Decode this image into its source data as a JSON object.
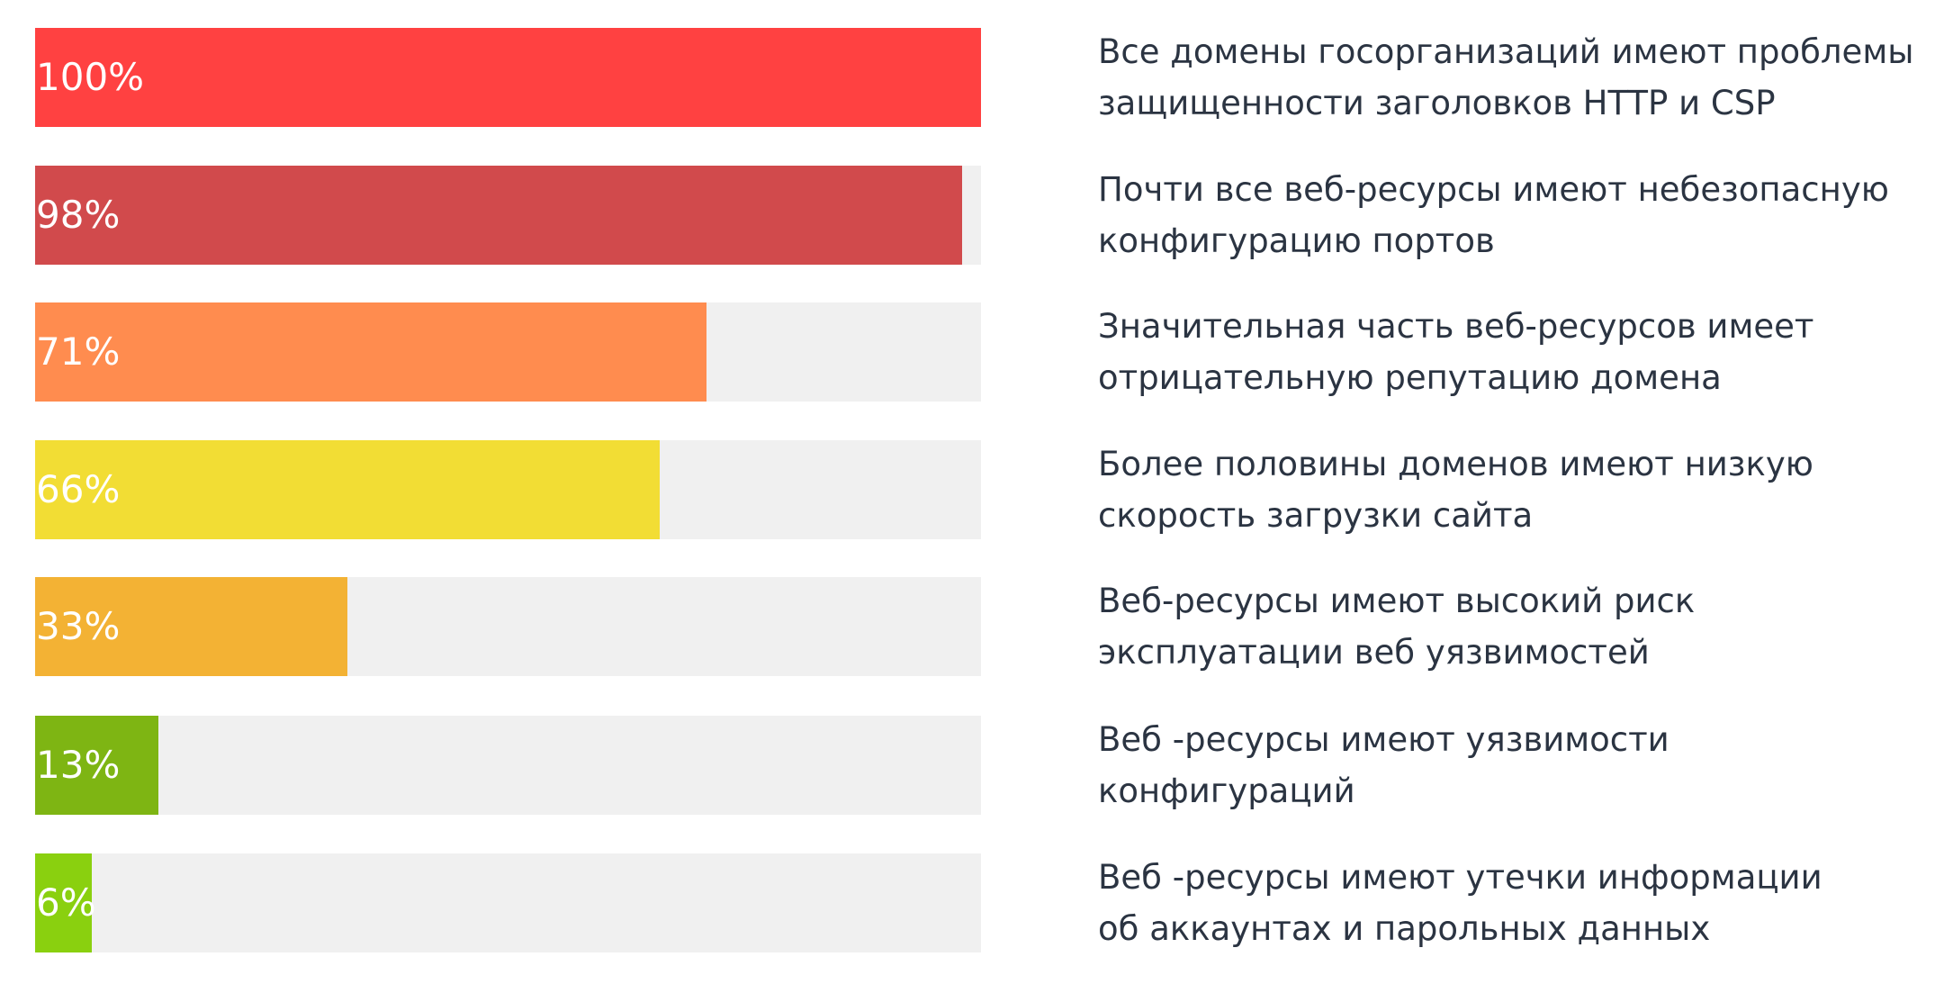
{
  "chart_data": {
    "type": "bar",
    "orientation": "horizontal",
    "xlim": [
      0,
      100
    ],
    "values": [
      100,
      98,
      71,
      66,
      33,
      13,
      6
    ],
    "value_labels": [
      "100%",
      "98%",
      "71%",
      "66%",
      "33%",
      "13%",
      "6%"
    ],
    "colors": [
      "#ff4141",
      "#d14a4c",
      "#ff8c4f",
      "#f2dd34",
      "#f3b234",
      "#7eb513",
      "#8ad00f"
    ],
    "track_color": "#f0f0f0",
    "categories": [
      [
        "Все домены госорганизаций имеют проблемы",
        "защищенности заголовков HTTP и CSP"
      ],
      [
        "Почти все веб-ресурсы имеют небезопасную",
        "конфигурацию портов"
      ],
      [
        "Значительная часть веб-ресурсов имеет",
        "отрицательную репутацию домена"
      ],
      [
        "Более половины доменов имеют низкую",
        "скорость загрузки сайта"
      ],
      [
        "Веб-ресурсы имеют высокий риск",
        "эксплуатации веб уязвимостей"
      ],
      [
        "Веб -ресурсы имеют уязвимости",
        "конфигураций"
      ],
      [
        "Веб -ресурсы имеют утечки информации",
        "об аккаунтах и парольных данных"
      ]
    ]
  }
}
